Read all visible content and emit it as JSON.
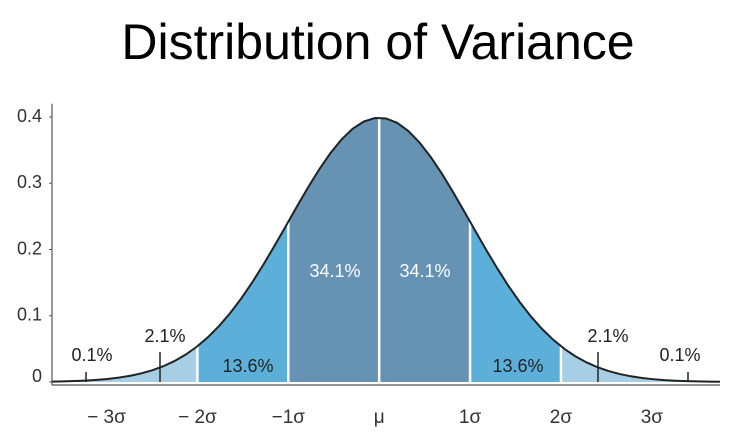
{
  "chart_data": {
    "type": "normal-regions",
    "title": "Distribution of Variance",
    "xlim": [
      -3.6,
      3.75
    ],
    "xticks": [
      {
        "value": -3,
        "label": "− 3σ"
      },
      {
        "value": -2,
        "label": "− 2σ"
      },
      {
        "value": -1,
        "label": "−1σ"
      },
      {
        "value": 0,
        "label": "μ"
      },
      {
        "value": 1,
        "label": "1σ"
      },
      {
        "value": 2,
        "label": "2σ"
      },
      {
        "value": 3,
        "label": "3σ"
      }
    ],
    "ylim": [
      0,
      0.42
    ],
    "yticks": [
      0,
      0.1,
      0.2,
      0.3,
      0.4
    ],
    "values": [
      0.1,
      2.1,
      13.6,
      34.1,
      34.1,
      13.6,
      2.1,
      0.1
    ],
    "value_labels": [
      "0.1%",
      "2.1%",
      "13.6%",
      "34.1%",
      "34.1%",
      "13.6%",
      "2.1%",
      "0.1%"
    ],
    "colors": [
      "#a6cfe6",
      "#a6cfe6",
      "#5cafd8",
      "#6692b4",
      "#6692b4",
      "#5cafd8",
      "#a6cfe6",
      "#a6cfe6"
    ]
  }
}
